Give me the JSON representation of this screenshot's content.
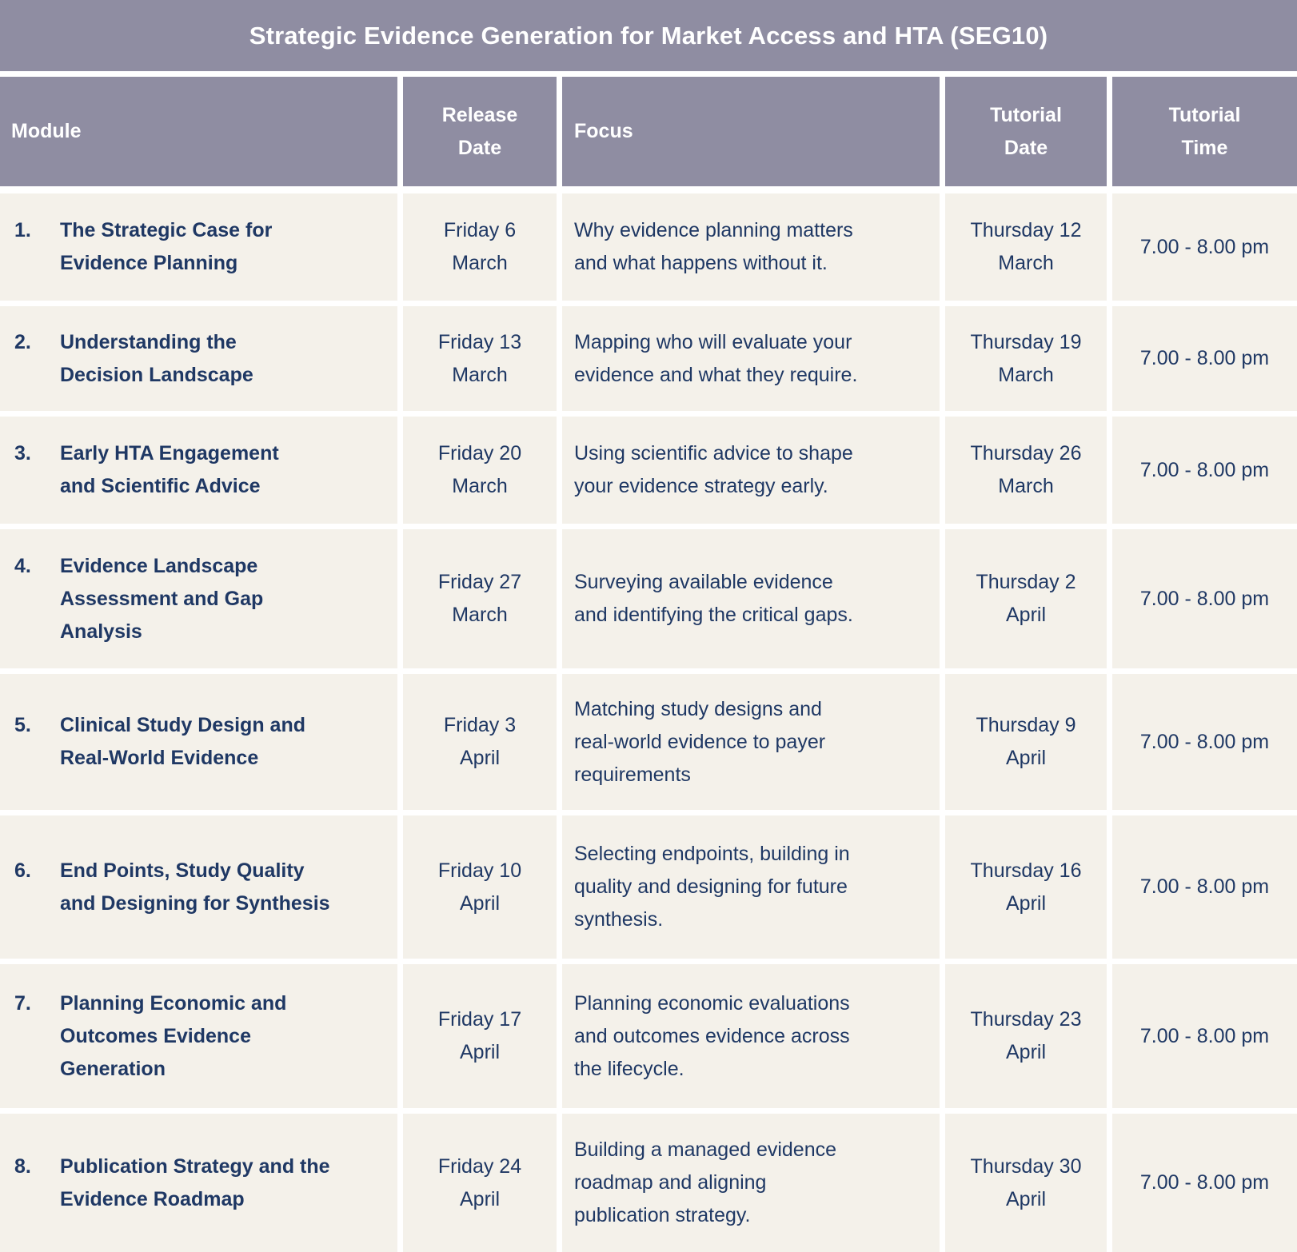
{
  "title": "Strategic Evidence Generation for Market Access and HTA (SEG10)",
  "theme": {
    "header_bg": "#8F8DA2",
    "header_text": "#FFFFFF",
    "row_bg": "#F4F1EA",
    "body_text": "#1F3864",
    "grid_line": "#FFFFFF"
  },
  "headers": {
    "module": "Module",
    "release_date": "Release\nDate",
    "focus": "Focus",
    "tutorial_date": "Tutorial\nDate",
    "tutorial_time": "Tutorial\nTime"
  },
  "rows": [
    {
      "number": "1.",
      "title": "The Strategic Case for\nEvidence Planning",
      "release_date": "Friday 6\nMarch",
      "focus": "Why evidence planning matters\nand what happens without it.",
      "tutorial_date": "Thursday 12\nMarch",
      "tutorial_time": "7.00 - 8.00 pm"
    },
    {
      "number": "2.",
      "title": "Understanding the\nDecision Landscape",
      "release_date": "Friday 13\nMarch",
      "focus": "Mapping who will evaluate your\nevidence and what they require.",
      "tutorial_date": "Thursday 19\nMarch",
      "tutorial_time": "7.00 - 8.00 pm"
    },
    {
      "number": "3.",
      "title": "Early HTA Engagement\nand Scientific Advice",
      "release_date": "Friday 20\nMarch",
      "focus": "Using scientific advice to shape\nyour evidence strategy early.",
      "tutorial_date": "Thursday 26\nMarch",
      "tutorial_time": "7.00 - 8.00 pm"
    },
    {
      "number": "4.",
      "title": "Evidence Landscape\nAssessment and Gap\nAnalysis",
      "release_date": "Friday 27\nMarch",
      "focus": "Surveying available evidence\nand identifying the critical gaps.",
      "tutorial_date": "Thursday 2\nApril",
      "tutorial_time": "7.00 - 8.00 pm"
    },
    {
      "number": "5.",
      "title": "Clinical Study Design and\nReal-World Evidence",
      "release_date": "Friday 3\nApril",
      "focus": "Matching study designs and\nreal-world evidence to payer\nrequirements",
      "tutorial_date": "Thursday 9\nApril",
      "tutorial_time": "7.00 - 8.00 pm"
    },
    {
      "number": "6.",
      "title": "End Points, Study Quality\nand Designing for Synthesis",
      "release_date": "Friday 10\nApril",
      "focus": "Selecting endpoints, building in\nquality and designing for future\nsynthesis.",
      "tutorial_date": "Thursday 16\nApril",
      "tutorial_time": "7.00 - 8.00 pm"
    },
    {
      "number": "7.",
      "title": "Planning Economic and\nOutcomes Evidence\nGeneration",
      "release_date": "Friday 17\nApril",
      "focus": "Planning economic evaluations\nand outcomes evidence across\nthe lifecycle.",
      "tutorial_date": "Thursday 23\nApril",
      "tutorial_time": "7.00 - 8.00 pm"
    },
    {
      "number": "8.",
      "title": "Publication Strategy and the\nEvidence Roadmap",
      "release_date": "Friday 24\nApril",
      "focus": "Building a managed evidence\nroadmap and aligning\npublication strategy.",
      "tutorial_date": "Thursday 30\nApril",
      "tutorial_time": "7.00 - 8.00 pm"
    }
  ]
}
